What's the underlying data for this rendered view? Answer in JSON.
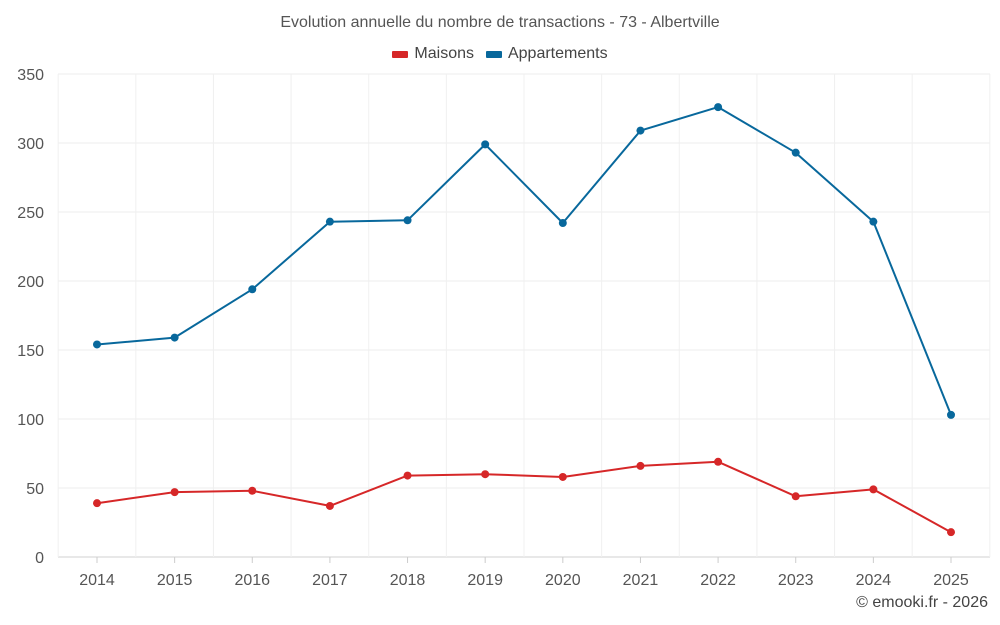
{
  "chart_data": {
    "type": "line",
    "title": "Evolution annuelle du nombre de transactions - 73 - Albertville",
    "x": [
      "2014",
      "2015",
      "2016",
      "2017",
      "2018",
      "2019",
      "2020",
      "2021",
      "2022",
      "2023",
      "2024",
      "2025"
    ],
    "series": [
      {
        "name": "Maisons",
        "color": "#d62728",
        "values": [
          39,
          47,
          48,
          37,
          59,
          60,
          58,
          66,
          69,
          44,
          49,
          18
        ]
      },
      {
        "name": "Appartements",
        "color": "#08689c",
        "values": [
          154,
          159,
          194,
          243,
          244,
          299,
          242,
          309,
          326,
          293,
          243,
          103
        ]
      }
    ],
    "ylim": [
      0,
      350
    ],
    "yticks": [
      0,
      50,
      100,
      150,
      200,
      250,
      300,
      350
    ],
    "grid": true,
    "legend_position": "top-center"
  },
  "credit": "© emooki.fr - 2026"
}
